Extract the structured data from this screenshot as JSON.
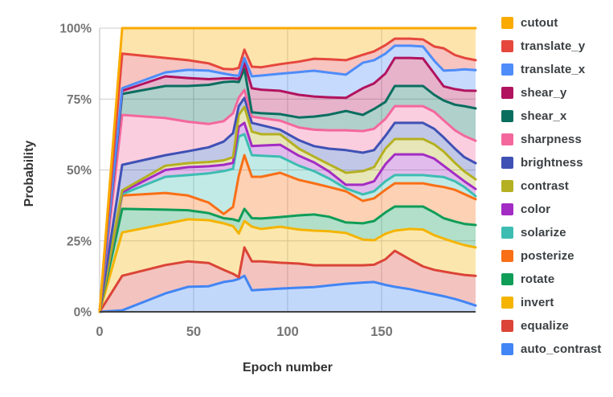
{
  "figure": {
    "y_axis": {
      "title": "Probability",
      "tick_labels": [
        "0%",
        "25%",
        "50%",
        "75%",
        "100%"
      ],
      "tick_values": [
        0,
        25,
        50,
        75,
        100
      ]
    },
    "x_axis": {
      "title": "Epoch number",
      "tick_labels": [
        "0",
        "50",
        "100",
        "150"
      ],
      "tick_values": [
        0,
        50,
        100,
        150
      ],
      "max": 200
    }
  },
  "style": {
    "background": "#ffffff",
    "grid_color": "#cccccc",
    "axis_line_color": "#b8b8b8",
    "baseline_color": "#424242",
    "tick_text_color": "#757575",
    "axis_title_color": "#333333",
    "legend_text_color": "#3c4043",
    "area_opacity": 0.32,
    "line_width": 3
  },
  "chart_data": {
    "type": "area",
    "stacked": true,
    "units": "percent",
    "title": "",
    "xlabel": "Epoch number",
    "ylabel": "Probability",
    "xlim": [
      0,
      200
    ],
    "ylim": [
      0,
      100
    ],
    "legend_position": "right",
    "legend_order": "reverse-of-stack",
    "x": [
      0,
      12,
      35,
      47,
      58,
      66,
      71,
      74,
      77,
      81,
      86,
      96,
      106,
      114,
      122,
      131,
      140,
      146,
      152,
      157,
      165,
      172,
      178,
      183,
      189,
      194,
      200
    ],
    "series": [
      {
        "name": "auto_contrast",
        "color": "#4285F4",
        "values": [
          0,
          0.5,
          6.5,
          8.8,
          9,
          10.5,
          11,
          11.6,
          12.7,
          7.6,
          7.8,
          8.2,
          8.5,
          8.7,
          9.3,
          9.9,
          10.3,
          10.5,
          9.5,
          8.8,
          8,
          7,
          6.2,
          5.5,
          4.5,
          3.5,
          2.2
        ]
      },
      {
        "name": "equalize",
        "color": "#DB4437",
        "values": [
          0,
          12.2,
          10,
          9,
          8.2,
          4.3,
          2.4,
          0.6,
          10,
          10.2,
          10,
          9.1,
          8.5,
          7.7,
          7.1,
          6.5,
          6.1,
          6.1,
          9,
          12.7,
          10.5,
          9,
          8.6,
          8.7,
          9,
          9.5,
          10.5
        ]
      },
      {
        "name": "invert",
        "color": "#F4B400",
        "values": [
          0,
          15.3,
          14.5,
          14.8,
          15.1,
          16.4,
          16.8,
          15.4,
          9.3,
          12.2,
          11.4,
          12.7,
          12,
          12.2,
          12,
          11.4,
          9.1,
          8.6,
          9,
          7.1,
          10.7,
          13,
          12.2,
          11.6,
          11,
          10.5,
          10
        ]
      },
      {
        "name": "rotate",
        "color": "#0F9D58",
        "values": [
          0,
          8.3,
          5,
          3.2,
          2.5,
          1.8,
          2.4,
          4.4,
          4.3,
          3,
          3.7,
          3.4,
          5,
          5.7,
          5.1,
          3.7,
          5.7,
          6.8,
          7.5,
          8.5,
          7.9,
          8.1,
          8,
          7.2,
          7.3,
          7.5,
          7.9
        ]
      },
      {
        "name": "posterize",
        "color": "#F96F16",
        "values": [
          0,
          4.7,
          5.9,
          5.2,
          3.7,
          1.5,
          4.4,
          16,
          18.9,
          14.6,
          14.7,
          15.6,
          12.5,
          11,
          10.5,
          11,
          7.9,
          8,
          8,
          8.2,
          8.2,
          8.2,
          9.5,
          11,
          11.2,
          10.5,
          9.1
        ]
      },
      {
        "name": "solarize",
        "color": "#3DBDB2",
        "values": [
          0,
          0.5,
          5.7,
          7.2,
          10.3,
          15.1,
          13.4,
          13.8,
          7.4,
          7.6,
          7.4,
          5.7,
          5,
          4.3,
          3,
          1,
          2.3,
          2.5,
          3,
          2.9,
          2.9,
          2.9,
          3.3,
          3.5,
          3,
          2.5,
          1.1
        ]
      },
      {
        "name": "color",
        "color": "#A32CC4",
        "values": [
          0,
          0.7,
          2.4,
          2.8,
          2.5,
          2.2,
          2.1,
          3.4,
          4,
          3.2,
          3.6,
          4.2,
          3.5,
          3.1,
          2.5,
          1.3,
          3.4,
          3.5,
          6,
          7.3,
          7.3,
          7.3,
          6.2,
          4,
          2.5,
          2,
          2.5
        ]
      },
      {
        "name": "contrast",
        "color": "#B5B021",
        "values": [
          0,
          0.6,
          1.5,
          1.4,
          1.5,
          1.6,
          2,
          4.2,
          5.6,
          5.1,
          4,
          3.7,
          2.5,
          2,
          2.5,
          4.2,
          4.8,
          5,
          5.5,
          5.4,
          5.4,
          5.4,
          5,
          5,
          4,
          3.5,
          3.4
        ]
      },
      {
        "name": "brightness",
        "color": "#3F51B5",
        "values": [
          0,
          9,
          3.7,
          4.2,
          5.2,
          6.6,
          8.5,
          3.1,
          3.2,
          3.1,
          3.2,
          1.6,
          3,
          3.7,
          5.5,
          8,
          6.5,
          6,
          4.5,
          5.7,
          5.7,
          5.7,
          5.5,
          5,
          5,
          5,
          5.7
        ]
      },
      {
        "name": "sharpness",
        "color": "#F4679D",
        "values": [
          0,
          17.6,
          13.1,
          10.4,
          8.2,
          7.2,
          7,
          3,
          2.8,
          2.2,
          2.5,
          3.2,
          4.5,
          5.8,
          6.5,
          7,
          7.6,
          7.5,
          6,
          5.9,
          5.9,
          5.9,
          6,
          6,
          6.5,
          7.5,
          7.9
        ]
      },
      {
        "name": "shear_x",
        "color": "#0A6E5F",
        "values": [
          0,
          7.4,
          11.3,
          12.6,
          13.8,
          13.8,
          11.2,
          5.5,
          7.4,
          1.5,
          1.7,
          2.3,
          3.5,
          4.6,
          5.5,
          6.8,
          5.7,
          7,
          6,
          7.1,
          7.1,
          7.1,
          6,
          7,
          9,
          10.5,
          11.4
        ]
      },
      {
        "name": "shear_y",
        "color": "#B1135E",
        "values": [
          0,
          1.1,
          3.4,
          2.8,
          2,
          1.3,
          1.1,
          1.1,
          2.2,
          8.5,
          8.3,
          8.2,
          8,
          7.1,
          6.1,
          4.6,
          9.4,
          9,
          10,
          9.9,
          9.9,
          9.7,
          7.5,
          5,
          5.5,
          5.5,
          6.2
        ]
      },
      {
        "name": "translate_x",
        "color": "#4E8CF9",
        "values": [
          0,
          0.9,
          1.4,
          2.9,
          3,
          1.7,
          1.1,
          1.1,
          1.7,
          4.2,
          5,
          6,
          8,
          9.1,
          8.7,
          8.2,
          9,
          8.2,
          7,
          4.3,
          4.3,
          4.2,
          4.5,
          5.5,
          6.7,
          7.5,
          7.3
        ]
      },
      {
        "name": "translate_y",
        "color": "#E5473C",
        "values": [
          0,
          12.2,
          5.1,
          3.4,
          2.6,
          1.6,
          2.1,
          2.8,
          2.9,
          3.4,
          2.9,
          3.4,
          3.7,
          4.2,
          4.7,
          5.1,
          2.8,
          3.1,
          3,
          2.5,
          2.5,
          2.5,
          5,
          7.9,
          5.3,
          4,
          3.5
        ]
      },
      {
        "name": "cutout",
        "color": "#F9AB00",
        "values": [
          0,
          9,
          10.5,
          11.3,
          12.4,
          14.4,
          14.5,
          14,
          7.6,
          13.6,
          13.8,
          12.7,
          11.8,
          10.8,
          11,
          11.3,
          9.4,
          8.2,
          6,
          3.7,
          3.7,
          4,
          6.5,
          7.1,
          9.5,
          10.5,
          11.3
        ]
      }
    ]
  }
}
